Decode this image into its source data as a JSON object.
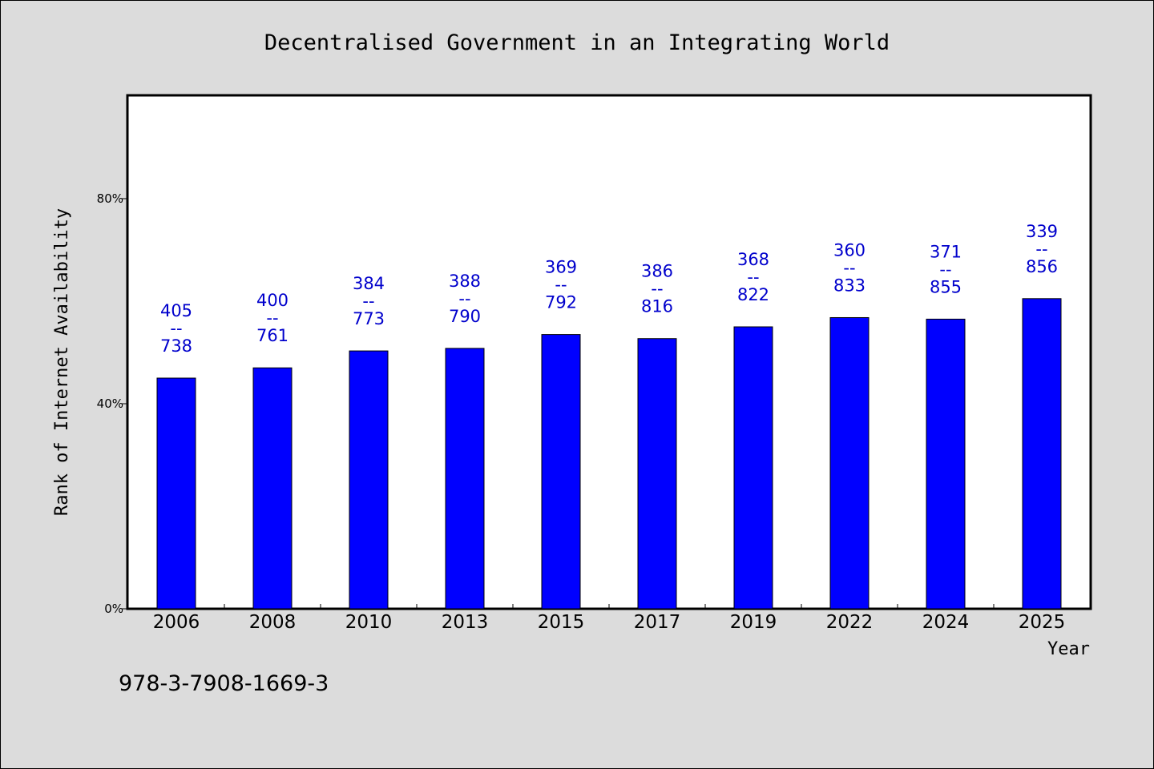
{
  "chart_data": {
    "type": "bar",
    "title": "Decentralised Government in an Integrating World",
    "xlabel": "Year",
    "ylabel": "Rank of Internet Availability",
    "categories": [
      "2006",
      "2008",
      "2010",
      "2013",
      "2015",
      "2017",
      "2019",
      "2022",
      "2024",
      "2025"
    ],
    "values": [
      0.45,
      0.47,
      0.503,
      0.508,
      0.535,
      0.527,
      0.55,
      0.568,
      0.565,
      0.605
    ],
    "labels_top": [
      "405",
      "400",
      "384",
      "388",
      "369",
      "386",
      "368",
      "360",
      "371",
      "339"
    ],
    "labels_sep": "--",
    "labels_bottom": [
      "738",
      "761",
      "773",
      "790",
      "792",
      "816",
      "822",
      "833",
      "855",
      "856"
    ],
    "yticks": [
      {
        "value": 0,
        "label": "0%"
      },
      {
        "value": 0.4,
        "label": "40%"
      },
      {
        "value": 0.8,
        "label": "80%"
      }
    ],
    "ylim": [
      0,
      1.0
    ],
    "grid": false,
    "bar_color": "#0000ff",
    "label_color": "#0000cc"
  },
  "footer": {
    "code": "978-3-7908-1669-3"
  }
}
